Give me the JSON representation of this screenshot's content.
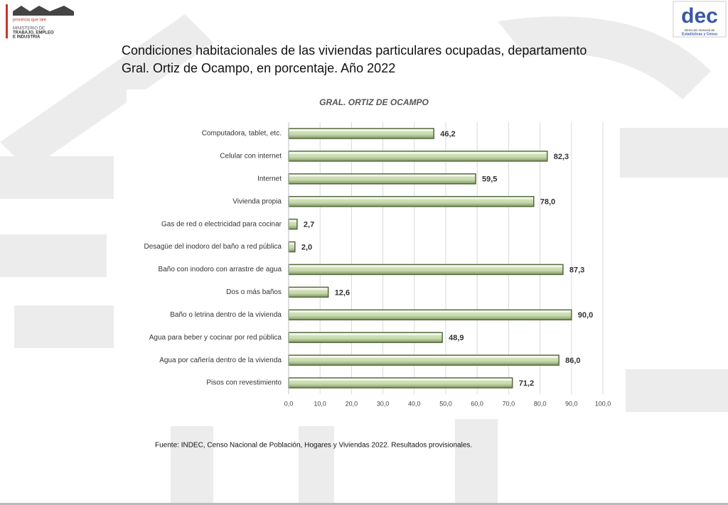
{
  "header": {
    "title_line1": "Condiciones habitacionales de las viviendas particulares ocupadas, departamento",
    "title_line2": "Gral. Ortiz de Ocampo, en porcentaje. Año 2022",
    "logo_left_tagline": "provincia que late",
    "logo_left_line1": "MINISTERIO DE",
    "logo_left_line2": "TRABAJO, EMPLEO",
    "logo_left_line3": "E INDUSTRIA",
    "logo_right_mark": "dec",
    "logo_right_line1": "Dirección General de",
    "logo_right_line2": "Estadísticas y Censo"
  },
  "chart_data": {
    "type": "hbar",
    "title": "GRAL. ORTIZ DE OCAMPO",
    "categories": [
      "Computadora, tablet, etc.",
      "Celular con internet",
      "Internet",
      "Vivienda propia",
      "Gas de red o electricidad para cocinar",
      "Desagüe del inodoro del baño a red pública",
      "Baño con inodoro con arrastre de agua",
      "Dos o más baños",
      "Baño o letrina dentro de la vivienda",
      "Agua para beber y cocinar por red pública",
      "Agua por cañería dentro de la vivienda",
      "Pisos con revestimiento"
    ],
    "values": [
      46.2,
      82.3,
      59.5,
      78.0,
      2.7,
      2.0,
      87.3,
      12.6,
      90.0,
      48.9,
      86.0,
      71.2
    ],
    "value_labels": [
      "46,2",
      "82,3",
      "59,5",
      "78,0",
      "2,7",
      "2,0",
      "87,3",
      "12,6",
      "90,0",
      "48,9",
      "86,0",
      "71,2"
    ],
    "color": "#c5d9a8",
    "edge_color": "#55693f",
    "xlim": [
      0,
      100
    ],
    "xticks": [
      {
        "value": 0,
        "label": "0,0"
      },
      {
        "value": 10,
        "label": "10,0"
      },
      {
        "value": 20,
        "label": "20,0"
      },
      {
        "value": 30,
        "label": "30,0"
      },
      {
        "value": 40,
        "label": "40,0"
      },
      {
        "value": 50,
        "label": "50,0"
      },
      {
        "value": 60,
        "label": "60,0"
      },
      {
        "value": 70,
        "label": "70,0"
      },
      {
        "value": 80,
        "label": "80,0"
      },
      {
        "value": 90,
        "label": "90,0"
      },
      {
        "value": 100,
        "label": "100,0"
      }
    ],
    "grid": true
  },
  "footer": {
    "source": "Fuente: INDEC, Censo Nacional de Población, Hogares y Viviendas 2022. Resultados provisionales."
  }
}
